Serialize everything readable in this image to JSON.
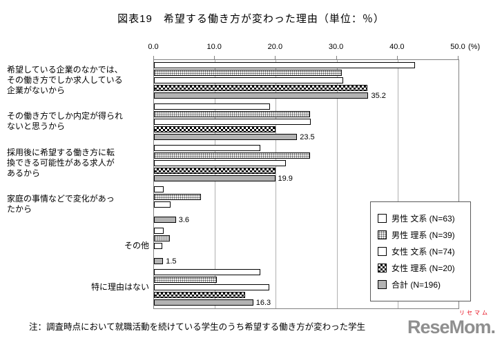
{
  "title": "図表19　希望する働き方が変わった理由（単位：％）",
  "note": "注：調査時点において就職活動を続けている学生のうち希望する働き方が変わった学生",
  "watermark": {
    "logo": "ReseMom.",
    "kana": "リセマム",
    "logo_color": "#8f8f8f",
    "kana_color": "#e60012"
  },
  "chart_data": {
    "type": "bar",
    "orientation": "horizontal",
    "title": "図表19　希望する働き方が変わった理由（単位：％）",
    "unit": "%",
    "grid": true,
    "legend_position": "right-inside",
    "x_axis": {
      "ticks": [
        "0.0",
        "10.0",
        "20.0",
        "30.0",
        "40.0",
        "50.0"
      ],
      "values": [
        0,
        10,
        20,
        30,
        40,
        50
      ],
      "max": 50,
      "suffix_label": "(%)"
    },
    "categories": [
      "希望している企業のなかでは、\nその働き方でしか求人している\n企業がないから",
      "その働き方でしか内定が得られ\nないと思うから",
      "採用後に希望する働き方に転\n換できる可能性がある求人が\nあるから",
      "家庭の事情などで変化があっ\nたから",
      "その他",
      "特に理由はない"
    ],
    "series": [
      {
        "name": "男性 文系 (N=63)",
        "pattern": "plain",
        "values": [
          42.9,
          19.0,
          17.5,
          1.6,
          1.6,
          17.5
        ]
      },
      {
        "name": "男性 理系 (N=39)",
        "pattern": "dots",
        "values": [
          30.8,
          25.6,
          25.6,
          7.7,
          2.6,
          10.3
        ]
      },
      {
        "name": "女性 文系 (N=74)",
        "pattern": "plain",
        "values": [
          31.1,
          25.7,
          21.6,
          2.7,
          1.4,
          18.9
        ]
      },
      {
        "name": "女性 理系 (N=20)",
        "pattern": "check",
        "values": [
          35.0,
          20.0,
          20.0,
          0.0,
          0.0,
          15.0
        ]
      },
      {
        "name": "合計 (N=196)",
        "pattern": "gray",
        "values": [
          35.2,
          23.5,
          19.9,
          3.6,
          1.5,
          16.3
        ],
        "show_labels": true
      }
    ],
    "data_labels": [
      35.2,
      23.5,
      19.9,
      3.6,
      1.5,
      16.3
    ]
  }
}
